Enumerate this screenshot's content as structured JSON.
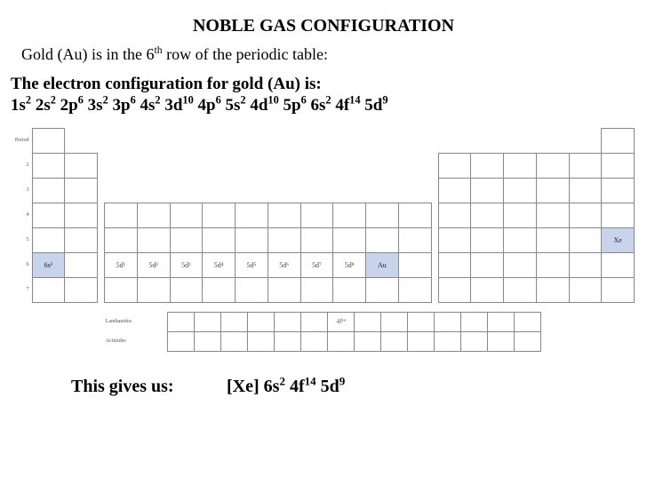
{
  "title": "NOBLE GAS CONFIGURATION",
  "intro_pre": "Gold (Au) is in the 6",
  "intro_sup": "th",
  "intro_post": " row of the periodic table:",
  "ec_label": "The electron configuration for gold (Au) is:",
  "ec": [
    {
      "t": "1s",
      "s": "2"
    },
    {
      "t": "2s",
      "s": "2"
    },
    {
      "t": "2p",
      "s": "6"
    },
    {
      "t": "3s",
      "s": "2"
    },
    {
      "t": "3p",
      "s": "6"
    },
    {
      "t": "4s",
      "s": "2"
    },
    {
      "t": "3d",
      "s": "10"
    },
    {
      "t": "4p",
      "s": "6"
    },
    {
      "t": "5s",
      "s": "2"
    },
    {
      "t": "4d",
      "s": "10"
    },
    {
      "t": "5p",
      "s": "6"
    },
    {
      "t": "6s",
      "s": "2"
    },
    {
      "t": "4f",
      "s": "14"
    },
    {
      "t": "5d",
      "s": "9"
    }
  ],
  "ptable": {
    "period_label": "Period",
    "row6": {
      "s_label": "6s²",
      "d_labels": [
        "5d¹",
        "5d²",
        "5d³",
        "5d⁴",
        "5d⁵",
        "5d⁶",
        "5d⁷",
        "5d⁸",
        "Au"
      ],
      "xe_label": "Xe"
    },
    "f_label": "4f¹⁴",
    "lan_label": "Lanthanides",
    "act_label": "Actinides",
    "colors": {
      "border": "#888888",
      "highlight_bg": "#c9d3ec",
      "text": "#444444"
    }
  },
  "result": {
    "prefix": "This gives us:",
    "noble": "[Xe]",
    "terms": [
      {
        "t": "6s",
        "s": "2"
      },
      {
        "t": "4f",
        "s": "14"
      },
      {
        "t": "5d",
        "s": "9"
      }
    ]
  }
}
